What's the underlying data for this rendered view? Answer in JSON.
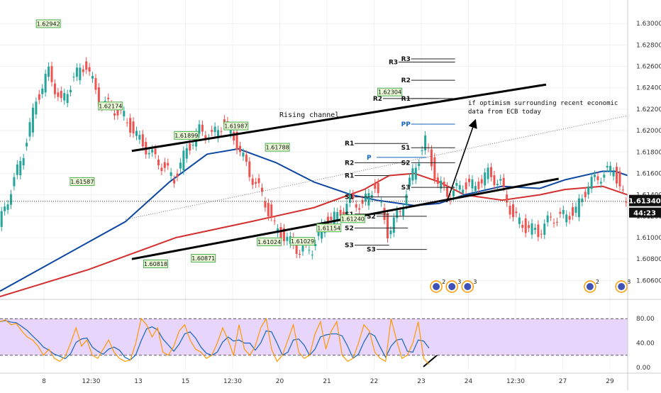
{
  "chart_data": {
    "type": "line",
    "price_axis": {
      "ticks": [
        "1.63000",
        "1.62800",
        "1.62600",
        "1.62400",
        "1.62200",
        "1.62000",
        "1.61800",
        "1.61600",
        "1.61400",
        "1.61200",
        "1.61000",
        "1.60800",
        "1.60600"
      ],
      "ylim": [
        1.6045,
        1.6322
      ],
      "current_price": "1.61340",
      "countdown": "44:23"
    },
    "time_axis": {
      "ticks": [
        "8",
        "12:30",
        "13",
        "15",
        "12:30",
        "20",
        "21",
        "22",
        "23",
        "24",
        "12:30",
        "27",
        "29"
      ]
    },
    "price_series": {
      "x": [
        0,
        2,
        4,
        6,
        8,
        10,
        12,
        14,
        16,
        18,
        20,
        22,
        24,
        26,
        28,
        30,
        32,
        34,
        36,
        38,
        40,
        42,
        44,
        46,
        48,
        50,
        52,
        54,
        56,
        58,
        60,
        62,
        64,
        66,
        68,
        70,
        72,
        74,
        76,
        78,
        80,
        82,
        84,
        86,
        88,
        90,
        92,
        94,
        96,
        98,
        100
      ],
      "y": [
        1.611,
        1.6145,
        1.618,
        1.6228,
        1.6255,
        1.6225,
        1.625,
        1.6262,
        1.6228,
        1.6222,
        1.6213,
        1.6195,
        1.618,
        1.6168,
        1.6155,
        1.6182,
        1.62,
        1.6195,
        1.6208,
        1.6188,
        1.616,
        1.614,
        1.611,
        1.6098,
        1.6088,
        1.609,
        1.6115,
        1.612,
        1.6135,
        1.613,
        1.615,
        1.6105,
        1.6125,
        1.616,
        1.619,
        1.615,
        1.614,
        1.615,
        1.6148,
        1.616,
        1.615,
        1.612,
        1.611,
        1.6105,
        1.6118,
        1.612,
        1.6125,
        1.615,
        1.6158,
        1.6165,
        1.613
      ]
    },
    "ma_blue": {
      "x": [
        0,
        20,
        27,
        33,
        38,
        44,
        50,
        56,
        60,
        66,
        70,
        74,
        80,
        86,
        90,
        96,
        98,
        100
      ],
      "y": [
        1.605,
        1.6115,
        1.6152,
        1.6178,
        1.6183,
        1.617,
        1.6152,
        1.614,
        1.6135,
        1.613,
        1.6132,
        1.614,
        1.6148,
        1.6146,
        1.6154,
        1.6162,
        1.6162,
        1.6158
      ]
    },
    "ma_red": {
      "x": [
        0,
        14,
        28,
        40,
        50,
        58,
        62,
        66,
        70,
        74,
        80,
        86,
        90,
        96,
        100
      ],
      "y": [
        1.6045,
        1.607,
        1.61,
        1.6115,
        1.6128,
        1.6145,
        1.6158,
        1.616,
        1.6152,
        1.614,
        1.6135,
        1.614,
        1.6145,
        1.6148,
        1.614
      ]
    },
    "channel_upper": {
      "x": [
        21,
        87
      ],
      "y": [
        1.6181,
        1.6243
      ]
    },
    "channel_lower": {
      "x": [
        21,
        89
      ],
      "y": [
        1.608,
        1.6155
      ]
    },
    "trend_dotted": {
      "x": [
        20,
        100
      ],
      "y": [
        1.6117,
        1.6214
      ]
    },
    "price_labels": [
      {
        "text": "1.62942",
        "x": 7.7,
        "y": 1.62942
      },
      {
        "text": "1.62174",
        "x": 17.6,
        "y": 1.62174
      },
      {
        "text": "1.61587",
        "x": 13.1,
        "y": 1.61587
      },
      {
        "text": "1.61987",
        "x": 37.6,
        "y": 1.61987
      },
      {
        "text": "1.61899",
        "x": 29.7,
        "y": 1.61899
      },
      {
        "text": "1.61788",
        "x": 44.2,
        "y": 1.61788
      },
      {
        "text": "1.60818",
        "x": 24.8,
        "y": 1.60818
      },
      {
        "text": "1.60871",
        "x": 32.4,
        "y": 1.60871
      },
      {
        "text": "1.61024",
        "x": 42.9,
        "y": 1.61024
      },
      {
        "text": "1.61029",
        "x": 48.2,
        "y": 1.61029
      },
      {
        "text": "1.61154",
        "x": 52.4,
        "y": 1.61154
      },
      {
        "text": "1.61240",
        "x": 56.2,
        "y": 1.6124
      },
      {
        "text": "1.62304",
        "x": 62.1,
        "y": 1.62304
      }
    ],
    "pivots": [
      {
        "label": "R3",
        "x": 63.5,
        "x2": 72.5,
        "y": 1.6264
      },
      {
        "label": "R3",
        "x": 65.5,
        "x2": 72.5,
        "y": 1.6267
      },
      {
        "label": "R2",
        "x": 65.5,
        "x2": 72.5,
        "y": 1.6247
      },
      {
        "label": "R2",
        "x": 61.0,
        "x2": 70.0,
        "y": 1.623
      },
      {
        "label": "R1",
        "x": 65.5,
        "x2": 72.5,
        "y": 1.623
      },
      {
        "label": "PP",
        "x": 65.5,
        "x2": 72.5,
        "y": 1.6206
      },
      {
        "label": "R1",
        "x": 56.5,
        "x2": 65.0,
        "y": 1.6188
      },
      {
        "label": "P",
        "x": 60.0,
        "x2": 68.0,
        "y": 1.6175
      },
      {
        "label": "S1",
        "x": 65.5,
        "x2": 72.5,
        "y": 1.6184
      },
      {
        "label": "R2",
        "x": 56.5,
        "x2": 65.0,
        "y": 1.617
      },
      {
        "label": "S2",
        "x": 65.5,
        "x2": 72.5,
        "y": 1.617
      },
      {
        "label": "R1",
        "x": 56.5,
        "x2": 62.0,
        "y": 1.6158
      },
      {
        "label": "S3",
        "x": 65.5,
        "x2": 72.5,
        "y": 1.6147
      },
      {
        "label": "S1",
        "x": 56.5,
        "x2": 65.0,
        "y": 1.6138
      },
      {
        "label": "S1",
        "x": 56.5,
        "x2": 62.0,
        "y": 1.6122
      },
      {
        "label": "S2",
        "x": 60.0,
        "x2": 68.0,
        "y": 1.612
      },
      {
        "label": "S2",
        "x": 56.5,
        "x2": 65.0,
        "y": 1.6109
      },
      {
        "label": "S3",
        "x": 56.5,
        "x2": 62.0,
        "y": 1.6093
      },
      {
        "label": "S3",
        "x": 60.0,
        "x2": 68.0,
        "y": 1.6089
      }
    ],
    "annotations": {
      "channel_label": "Rising channel",
      "note_line1": "if optimism surrounding recent economic",
      "note_line2": "data from ECB today"
    },
    "event_badges": [
      {
        "x": 69.5,
        "count": "2"
      },
      {
        "x": 72.0,
        "count": "3"
      },
      {
        "x": 74.5,
        "count": "3"
      },
      {
        "x": 94.0,
        "count": "2"
      },
      {
        "x": 99.0,
        "count": "8"
      }
    ],
    "oscillator": {
      "ticks": [
        "80.00",
        "40.00",
        "0.00"
      ],
      "upper_band": 80,
      "lower_band": 20,
      "k_values": [
        75,
        78,
        70,
        72,
        60,
        50,
        45,
        35,
        20,
        30,
        15,
        10,
        18,
        40,
        65,
        35,
        45,
        20,
        15,
        30,
        45,
        25,
        15,
        10,
        12,
        40,
        80,
        70,
        50,
        65,
        25,
        20,
        35,
        60,
        70,
        45,
        30,
        25,
        15,
        20,
        40,
        65,
        45,
        20,
        70,
        30,
        20,
        35,
        65,
        80,
        30,
        10,
        20,
        45,
        70,
        25,
        15,
        20,
        55,
        75,
        30,
        60,
        75,
        20,
        10,
        15,
        40,
        70,
        60,
        25,
        15,
        10,
        80,
        45,
        15,
        20,
        40,
        75,
        15,
        5
      ]
    },
    "colors": {
      "up": "#26a69a",
      "down": "#ef5350",
      "ma_blue": "#0d47a1",
      "ma_red": "#d32f2f",
      "osc_fill": "#e8d5fb",
      "osc_k": "#ff9800",
      "osc_d": "#1565c0"
    }
  }
}
